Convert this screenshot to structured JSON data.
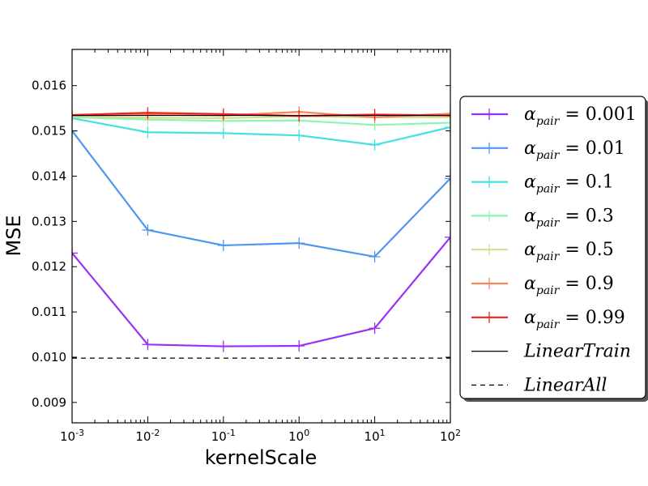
{
  "chart_data": {
    "type": "line",
    "title": "",
    "xlabel": "kernelScale",
    "ylabel": "MSE",
    "xscale": "log",
    "x": [
      0.001,
      0.01,
      0.1,
      1,
      10,
      100
    ],
    "xtick_labels": [
      {
        "base": "10",
        "exp": "-3"
      },
      {
        "base": "10",
        "exp": "-2"
      },
      {
        "base": "10",
        "exp": "-1"
      },
      {
        "base": "10",
        "exp": "0"
      },
      {
        "base": "10",
        "exp": "1"
      },
      {
        "base": "10",
        "exp": "2"
      }
    ],
    "xlim": [
      0.001,
      100
    ],
    "ylim": [
      0.00855,
      0.0168
    ],
    "yticks": [
      "0.009",
      "0.010",
      "0.011",
      "0.012",
      "0.013",
      "0.014",
      "0.015",
      "0.016"
    ],
    "grid": false,
    "legend_position": "outside-right",
    "series": [
      {
        "name": "α_pair = 0.001",
        "label_main": "α",
        "label_sub": "pair",
        "label_tail": " = 0.001",
        "color": "#9b30f5",
        "marker": "+",
        "values": [
          0.0123,
          0.01028,
          0.01024,
          0.01025,
          0.01064,
          0.01265
        ]
      },
      {
        "name": "α_pair = 0.01",
        "label_main": "α",
        "label_sub": "pair",
        "label_tail": " = 0.01",
        "color": "#4f97ee",
        "marker": "+",
        "values": [
          0.015,
          0.01281,
          0.01247,
          0.01252,
          0.01222,
          0.01395
        ]
      },
      {
        "name": "α_pair = 0.1",
        "label_main": "α",
        "label_sub": "pair",
        "label_tail": " = 0.1",
        "color": "#45e0e0",
        "marker": "+",
        "values": [
          0.01528,
          0.01497,
          0.01495,
          0.0149,
          0.01469,
          0.01508
        ]
      },
      {
        "name": "α_pair = 0.3",
        "label_main": "α",
        "label_sub": "pair",
        "label_tail": " = 0.3",
        "color": "#8cf5b4",
        "marker": "+",
        "values": [
          0.0153,
          0.01525,
          0.01522,
          0.01523,
          0.01513,
          0.01518
        ]
      },
      {
        "name": "α_pair = 0.5",
        "label_main": "α",
        "label_sub": "pair",
        "label_tail": " = 0.5",
        "color": "#d5dd8c",
        "marker": "+",
        "values": [
          0.01532,
          0.01529,
          0.01528,
          0.01532,
          0.0153,
          0.0153
        ]
      },
      {
        "name": "α_pair = 0.9",
        "label_main": "α",
        "label_sub": "pair",
        "label_tail": " = 0.9",
        "color": "#f4875a",
        "marker": "+",
        "values": [
          0.01534,
          0.01536,
          0.01534,
          0.01542,
          0.0153,
          0.01538
        ]
      },
      {
        "name": "α_pair = 0.99",
        "label_main": "α",
        "label_sub": "pair",
        "label_tail": " = 0.99",
        "color": "#ee2222",
        "marker": "+",
        "values": [
          0.01535,
          0.0154,
          0.01537,
          0.01533,
          0.01536,
          0.01534
        ]
      },
      {
        "name": "LinearTrain",
        "label_main": "LinearTrain",
        "label_sub": "",
        "label_tail": "",
        "color": "#000000",
        "marker": "none",
        "style": "solid",
        "values": [
          0.01534,
          0.01534,
          0.01534,
          0.01534,
          0.01534,
          0.01534
        ]
      },
      {
        "name": "LinearAll",
        "label_main": "LinearAll",
        "label_sub": "",
        "label_tail": "",
        "color": "#000000",
        "marker": "none",
        "style": "dashed",
        "values": [
          0.00998,
          0.00998,
          0.00998,
          0.00998,
          0.00998,
          0.00998
        ]
      }
    ]
  }
}
